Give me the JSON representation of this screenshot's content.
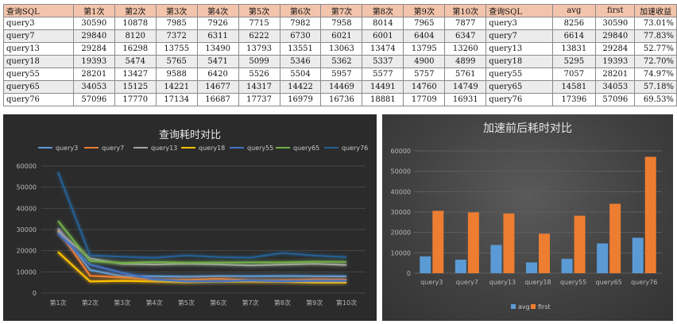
{
  "table": {
    "headers": [
      "查询SQL",
      "第1次",
      "第2次",
      "第3次",
      "第4次",
      "第5次",
      "第6次",
      "第7次",
      "第8次",
      "第9次",
      "第10次",
      "查询SQL",
      "avg",
      "first",
      "加速收益"
    ],
    "rows": [
      [
        "query3",
        "30590",
        "10878",
        "7985",
        "7926",
        "7715",
        "7982",
        "7958",
        "8014",
        "7965",
        "7877",
        "query3",
        "8256",
        "30590",
        "73.01%"
      ],
      [
        "query7",
        "29840",
        "8120",
        "7372",
        "6311",
        "6222",
        "6730",
        "6021",
        "6001",
        "6404",
        "6347",
        "query7",
        "6614",
        "29840",
        "77.83%"
      ],
      [
        "query13",
        "29284",
        "16298",
        "13755",
        "13490",
        "13793",
        "13551",
        "13063",
        "13474",
        "13795",
        "13260",
        "query13",
        "13831",
        "29284",
        "52.77%"
      ],
      [
        "query18",
        "19393",
        "5474",
        "5765",
        "5471",
        "5099",
        "5346",
        "5362",
        "5337",
        "4900",
        "4899",
        "query18",
        "5295",
        "19393",
        "72.70%"
      ],
      [
        "query55",
        "28201",
        "13427",
        "9588",
        "6420",
        "5526",
        "5504",
        "5957",
        "5577",
        "5757",
        "5761",
        "query55",
        "7057",
        "28201",
        "74.97%"
      ],
      [
        "query65",
        "34053",
        "15125",
        "14221",
        "14677",
        "14317",
        "14422",
        "14469",
        "14491",
        "14760",
        "14749",
        "query65",
        "14581",
        "34053",
        "57.18%"
      ],
      [
        "query76",
        "57096",
        "17770",
        "17134",
        "16687",
        "17737",
        "16979",
        "16736",
        "18881",
        "17709",
        "16931",
        "query76",
        "17396",
        "57096",
        "69.53%"
      ]
    ]
  },
  "chart_data": [
    {
      "type": "line",
      "title": "查询耗时对比",
      "categories": [
        "第1次",
        "第2次",
        "第3次",
        "第4次",
        "第5次",
        "第6次",
        "第7次",
        "第8次",
        "第9次",
        "第10次"
      ],
      "ylim": [
        0,
        60000
      ],
      "yticks": [
        0,
        10000,
        20000,
        30000,
        40000,
        50000,
        60000
      ],
      "grid": true,
      "legend": "top",
      "series": [
        {
          "name": "query3",
          "color": "#5b9bd5",
          "values": [
            30590,
            10878,
            7985,
            7926,
            7715,
            7982,
            7958,
            8014,
            7965,
            7877
          ]
        },
        {
          "name": "query7",
          "color": "#ed7d31",
          "values": [
            29840,
            8120,
            7372,
            6311,
            6222,
            6730,
            6021,
            6001,
            6404,
            6347
          ]
        },
        {
          "name": "query13",
          "color": "#a5a5a5",
          "values": [
            29284,
            16298,
            13755,
            13490,
            13793,
            13551,
            13063,
            13474,
            13795,
            13260
          ]
        },
        {
          "name": "query18",
          "color": "#ffc000",
          "values": [
            19393,
            5474,
            5765,
            5471,
            5099,
            5346,
            5362,
            5337,
            4900,
            4899
          ]
        },
        {
          "name": "query55",
          "color": "#4472c4",
          "values": [
            28201,
            13427,
            9588,
            6420,
            5526,
            5504,
            5957,
            5577,
            5757,
            5761
          ]
        },
        {
          "name": "query65",
          "color": "#70ad47",
          "values": [
            34053,
            15125,
            14221,
            14677,
            14317,
            14422,
            14469,
            14491,
            14760,
            14749
          ]
        },
        {
          "name": "query76",
          "color": "#255e91",
          "values": [
            57096,
            17770,
            17134,
            16687,
            17737,
            16979,
            16736,
            18881,
            17709,
            16931
          ]
        }
      ]
    },
    {
      "type": "bar",
      "title": "加速前后耗时对比",
      "categories": [
        "query3",
        "query7",
        "query13",
        "query18",
        "query55",
        "query65",
        "query76"
      ],
      "ylim": [
        0,
        60000
      ],
      "yticks": [
        0,
        10000,
        20000,
        30000,
        40000,
        50000,
        60000
      ],
      "grid": true,
      "legend": "bottom",
      "series": [
        {
          "name": "avg",
          "color": "#5b9bd5",
          "values": [
            8256,
            6614,
            13831,
            5295,
            7057,
            14581,
            17396
          ]
        },
        {
          "name": "first",
          "color": "#ed7d31",
          "values": [
            30590,
            29840,
            29284,
            19393,
            28201,
            34053,
            57096
          ]
        }
      ]
    }
  ]
}
